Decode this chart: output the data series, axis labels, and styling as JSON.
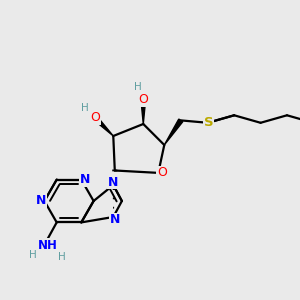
{
  "background_color": "#eaeaea",
  "atom_colors": {
    "O": "#ff0000",
    "N": "#0000ff",
    "S": "#bbaa00",
    "H": "#5f9ea0",
    "C": "#000000"
  },
  "figsize": [
    3.0,
    3.0
  ],
  "dpi": 100,
  "xlim": [
    -0.5,
    9.5
  ],
  "ylim": [
    -0.5,
    9.5
  ]
}
